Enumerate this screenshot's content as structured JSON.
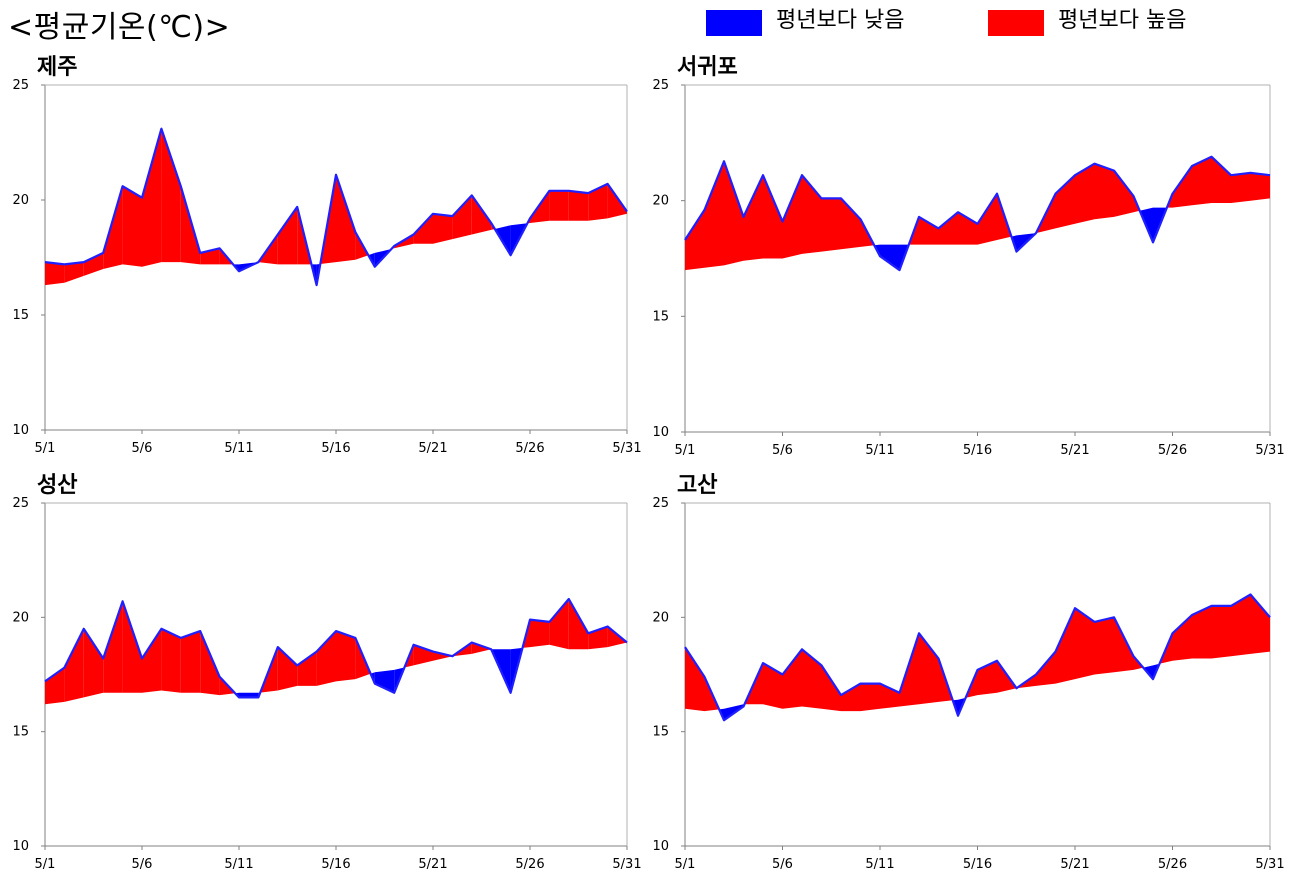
{
  "header": {
    "title": "<평균기온(℃)>"
  },
  "legend": [
    {
      "label": "평년보다 낮음",
      "color": "#0000ff"
    },
    {
      "label": "평년보다 높음",
      "color": "#ff0000"
    }
  ],
  "colors": {
    "below": "#0000ff",
    "above": "#ff0000",
    "line": "#2020ff",
    "axis": "#808080"
  },
  "chart_data": [
    {
      "type": "area",
      "title": "제주",
      "x_tick_labels": [
        "5/1",
        "5/6",
        "5/11",
        "5/16",
        "5/21",
        "5/26",
        "5/31"
      ],
      "ylim": [
        10,
        25
      ],
      "y_ticks": [
        10,
        15,
        20,
        25
      ],
      "grid": false,
      "actual": [
        17.3,
        17.2,
        17.3,
        17.7,
        20.6,
        20.1,
        23.1,
        20.6,
        17.7,
        17.9,
        16.9,
        17.3,
        18.5,
        19.7,
        16.3,
        21.1,
        18.6,
        17.1,
        18.0,
        18.5,
        19.4,
        19.3,
        20.2,
        19.0,
        17.6,
        19.2,
        20.4,
        20.4,
        20.3,
        20.7,
        19.5
      ],
      "normal": [
        16.3,
        16.4,
        16.7,
        17.0,
        17.2,
        17.1,
        17.3,
        17.3,
        17.2,
        17.2,
        17.2,
        17.3,
        17.2,
        17.2,
        17.2,
        17.3,
        17.4,
        17.7,
        17.9,
        18.1,
        18.1,
        18.3,
        18.5,
        18.7,
        18.9,
        19.0,
        19.1,
        19.1,
        19.1,
        19.2,
        19.4
      ]
    },
    {
      "type": "area",
      "title": "서귀포",
      "x_tick_labels": [
        "5/1",
        "5/6",
        "5/11",
        "5/16",
        "5/21",
        "5/26",
        "5/31"
      ],
      "ylim": [
        10,
        25
      ],
      "y_ticks": [
        10,
        15,
        20,
        25
      ],
      "grid": false,
      "actual": [
        18.3,
        19.6,
        21.7,
        19.3,
        21.1,
        19.1,
        21.1,
        20.1,
        20.1,
        19.2,
        17.6,
        17.0,
        19.3,
        18.8,
        19.5,
        19.0,
        20.3,
        17.8,
        18.6,
        20.3,
        21.1,
        21.6,
        21.3,
        20.2,
        18.2,
        20.3,
        21.5,
        21.9,
        21.1,
        21.2,
        21.1
      ],
      "normal": [
        17.0,
        17.1,
        17.2,
        17.4,
        17.5,
        17.5,
        17.7,
        17.8,
        17.9,
        18.0,
        18.1,
        18.1,
        18.1,
        18.1,
        18.1,
        18.1,
        18.3,
        18.5,
        18.6,
        18.8,
        19.0,
        19.2,
        19.3,
        19.5,
        19.7,
        19.7,
        19.8,
        19.9,
        19.9,
        20.0,
        20.1
      ]
    },
    {
      "type": "area",
      "title": "성산",
      "x_tick_labels": [
        "5/1",
        "5/6",
        "5/11",
        "5/16",
        "5/21",
        "5/26",
        "5/31"
      ],
      "ylim": [
        10,
        25
      ],
      "y_ticks": [
        10,
        15,
        20,
        25
      ],
      "grid": false,
      "actual": [
        17.2,
        17.8,
        19.5,
        18.2,
        20.7,
        18.2,
        19.5,
        19.1,
        19.4,
        17.4,
        16.5,
        16.5,
        18.7,
        17.9,
        18.5,
        19.4,
        19.1,
        17.1,
        16.7,
        18.8,
        18.5,
        18.3,
        18.9,
        18.6,
        16.7,
        19.9,
        19.8,
        20.8,
        19.3,
        19.6,
        18.9
      ],
      "normal": [
        16.2,
        16.3,
        16.5,
        16.7,
        16.7,
        16.7,
        16.8,
        16.7,
        16.7,
        16.6,
        16.7,
        16.7,
        16.8,
        17.0,
        17.0,
        17.2,
        17.3,
        17.6,
        17.7,
        17.9,
        18.1,
        18.3,
        18.4,
        18.6,
        18.6,
        18.7,
        18.8,
        18.6,
        18.6,
        18.7,
        18.9
      ]
    },
    {
      "type": "area",
      "title": "고산",
      "x_tick_labels": [
        "5/1",
        "5/6",
        "5/11",
        "5/16",
        "5/21",
        "5/26",
        "5/31"
      ],
      "ylim": [
        10,
        25
      ],
      "y_ticks": [
        10,
        15,
        20,
        25
      ],
      "grid": false,
      "actual": [
        18.7,
        17.4,
        15.5,
        16.1,
        18.0,
        17.5,
        18.6,
        17.9,
        16.6,
        17.1,
        17.1,
        16.7,
        19.3,
        18.2,
        15.7,
        17.7,
        18.1,
        16.9,
        17.5,
        18.5,
        20.4,
        19.8,
        20.0,
        18.3,
        17.3,
        19.3,
        20.1,
        20.5,
        20.5,
        21.0,
        20.0
      ],
      "normal": [
        16.0,
        15.9,
        16.0,
        16.2,
        16.2,
        16.0,
        16.1,
        16.0,
        15.9,
        15.9,
        16.0,
        16.1,
        16.2,
        16.3,
        16.4,
        16.6,
        16.7,
        16.9,
        17.0,
        17.1,
        17.3,
        17.5,
        17.6,
        17.7,
        17.9,
        18.1,
        18.2,
        18.2,
        18.3,
        18.4,
        18.5
      ]
    }
  ]
}
